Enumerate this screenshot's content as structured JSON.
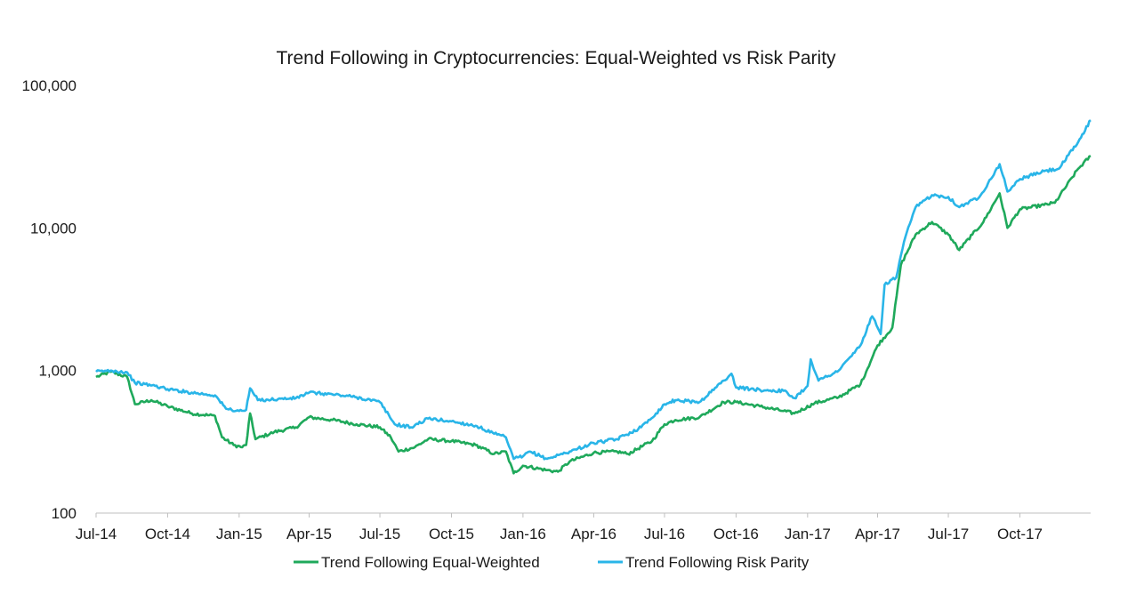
{
  "chart_data": {
    "type": "line",
    "title": "Trend Following in Cryptocurrencies: Equal-Weighted vs Risk Parity",
    "xlabel": "",
    "ylabel": "",
    "y_scale": "log",
    "ylim": [
      100,
      100000
    ],
    "y_ticks": [
      100,
      1000,
      10000,
      100000
    ],
    "y_tick_labels": [
      "100",
      "1,000",
      "10,000",
      "100,000"
    ],
    "x_range": [
      "2014-07-01",
      "2017-12-31"
    ],
    "x_ticks": [
      "2014-07-01",
      "2014-10-01",
      "2015-01-01",
      "2015-04-01",
      "2015-07-01",
      "2015-10-01",
      "2016-01-01",
      "2016-04-01",
      "2016-07-01",
      "2016-10-01",
      "2017-01-01",
      "2017-04-01",
      "2017-07-01",
      "2017-10-01"
    ],
    "x_tick_labels": [
      "Jul-14",
      "Oct-14",
      "Jan-15",
      "Apr-15",
      "Jul-15",
      "Oct-15",
      "Jan-16",
      "Apr-16",
      "Jul-16",
      "Oct-16",
      "Jan-17",
      "Apr-17",
      "Jul-17",
      "Oct-17"
    ],
    "grid": false,
    "legend_position": "bottom",
    "series": [
      {
        "name": "Trend Following Equal-Weighted",
        "color": "#1fa95b",
        "points": [
          [
            "2014-07-01",
            900
          ],
          [
            "2014-07-20",
            980
          ],
          [
            "2014-08-10",
            900
          ],
          [
            "2014-08-20",
            580
          ],
          [
            "2014-09-10",
            620
          ],
          [
            "2014-10-01",
            560
          ],
          [
            "2014-11-01",
            500
          ],
          [
            "2014-12-01",
            480
          ],
          [
            "2014-12-10",
            340
          ],
          [
            "2014-12-25",
            300
          ],
          [
            "2015-01-05",
            290
          ],
          [
            "2015-01-10",
            300
          ],
          [
            "2015-01-15",
            500
          ],
          [
            "2015-01-22",
            330
          ],
          [
            "2015-02-15",
            370
          ],
          [
            "2015-03-15",
            400
          ],
          [
            "2015-04-01",
            470
          ],
          [
            "2015-05-01",
            450
          ],
          [
            "2015-06-01",
            420
          ],
          [
            "2015-07-01",
            400
          ],
          [
            "2015-07-15",
            340
          ],
          [
            "2015-07-25",
            270
          ],
          [
            "2015-08-15",
            290
          ],
          [
            "2015-09-01",
            330
          ],
          [
            "2015-10-01",
            320
          ],
          [
            "2015-11-01",
            300
          ],
          [
            "2015-11-25",
            260
          ],
          [
            "2015-12-10",
            270
          ],
          [
            "2015-12-20",
            190
          ],
          [
            "2016-01-01",
            215
          ],
          [
            "2016-02-01",
            200
          ],
          [
            "2016-02-15",
            195
          ],
          [
            "2016-03-01",
            230
          ],
          [
            "2016-04-01",
            265
          ],
          [
            "2016-05-01",
            270
          ],
          [
            "2016-05-15",
            260
          ],
          [
            "2016-06-15",
            320
          ],
          [
            "2016-07-01",
            420
          ],
          [
            "2016-07-15",
            450
          ],
          [
            "2016-08-15",
            470
          ],
          [
            "2016-09-15",
            600
          ],
          [
            "2016-10-01",
            600
          ],
          [
            "2016-11-01",
            560
          ],
          [
            "2016-12-01",
            520
          ],
          [
            "2016-12-15",
            500
          ],
          [
            "2017-01-10",
            590
          ],
          [
            "2017-02-10",
            650
          ],
          [
            "2017-03-10",
            800
          ],
          [
            "2017-04-01",
            1500
          ],
          [
            "2017-04-20",
            2000
          ],
          [
            "2017-05-01",
            5500
          ],
          [
            "2017-05-20",
            9000
          ],
          [
            "2017-06-10",
            11000
          ],
          [
            "2017-07-01",
            9000
          ],
          [
            "2017-07-15",
            7000
          ],
          [
            "2017-08-01",
            9000
          ],
          [
            "2017-08-15",
            11000
          ],
          [
            "2017-09-05",
            17500
          ],
          [
            "2017-09-15",
            10000
          ],
          [
            "2017-10-01",
            13500
          ],
          [
            "2017-11-01",
            14500
          ],
          [
            "2017-11-15",
            15000
          ],
          [
            "2017-12-15",
            26000
          ],
          [
            "2017-12-31",
            32000
          ]
        ]
      },
      {
        "name": "Trend Following Risk Parity",
        "color": "#29b5e8",
        "points": [
          [
            "2014-07-01",
            980
          ],
          [
            "2014-07-20",
            1000
          ],
          [
            "2014-08-10",
            970
          ],
          [
            "2014-08-20",
            820
          ],
          [
            "2014-09-15",
            780
          ],
          [
            "2014-10-01",
            740
          ],
          [
            "2014-11-01",
            700
          ],
          [
            "2014-12-01",
            670
          ],
          [
            "2014-12-15",
            540
          ],
          [
            "2015-01-01",
            520
          ],
          [
            "2015-01-10",
            530
          ],
          [
            "2015-01-15",
            750
          ],
          [
            "2015-01-25",
            620
          ],
          [
            "2015-02-20",
            630
          ],
          [
            "2015-03-15",
            640
          ],
          [
            "2015-04-01",
            700
          ],
          [
            "2015-05-01",
            680
          ],
          [
            "2015-06-01",
            650
          ],
          [
            "2015-07-01",
            600
          ],
          [
            "2015-07-20",
            420
          ],
          [
            "2015-08-10",
            400
          ],
          [
            "2015-09-01",
            460
          ],
          [
            "2015-10-01",
            440
          ],
          [
            "2015-11-01",
            410
          ],
          [
            "2015-11-25",
            360
          ],
          [
            "2015-12-10",
            340
          ],
          [
            "2015-12-20",
            240
          ],
          [
            "2016-01-01",
            250
          ],
          [
            "2016-01-10",
            270
          ],
          [
            "2016-02-01",
            240
          ],
          [
            "2016-03-01",
            270
          ],
          [
            "2016-04-01",
            310
          ],
          [
            "2016-05-01",
            330
          ],
          [
            "2016-06-01",
            400
          ],
          [
            "2016-06-20",
            500
          ],
          [
            "2016-07-01",
            580
          ],
          [
            "2016-07-15",
            620
          ],
          [
            "2016-08-15",
            600
          ],
          [
            "2016-09-15",
            850
          ],
          [
            "2016-09-25",
            950
          ],
          [
            "2016-10-01",
            760
          ],
          [
            "2016-11-01",
            730
          ],
          [
            "2016-12-01",
            720
          ],
          [
            "2016-12-15",
            640
          ],
          [
            "2017-01-01",
            780
          ],
          [
            "2017-01-05",
            1200
          ],
          [
            "2017-01-15",
            850
          ],
          [
            "2017-02-10",
            1000
          ],
          [
            "2017-03-10",
            1500
          ],
          [
            "2017-03-25",
            2400
          ],
          [
            "2017-04-05",
            1800
          ],
          [
            "2017-04-10",
            4000
          ],
          [
            "2017-04-25",
            4500
          ],
          [
            "2017-05-05",
            8000
          ],
          [
            "2017-05-20",
            14000
          ],
          [
            "2017-06-10",
            17000
          ],
          [
            "2017-07-01",
            16500
          ],
          [
            "2017-07-15",
            14000
          ],
          [
            "2017-08-10",
            16500
          ],
          [
            "2017-09-05",
            28000
          ],
          [
            "2017-09-15",
            18000
          ],
          [
            "2017-10-01",
            22000
          ],
          [
            "2017-11-01",
            25000
          ],
          [
            "2017-11-20",
            26000
          ],
          [
            "2017-12-15",
            40000
          ],
          [
            "2017-12-31",
            57000
          ]
        ]
      }
    ]
  }
}
